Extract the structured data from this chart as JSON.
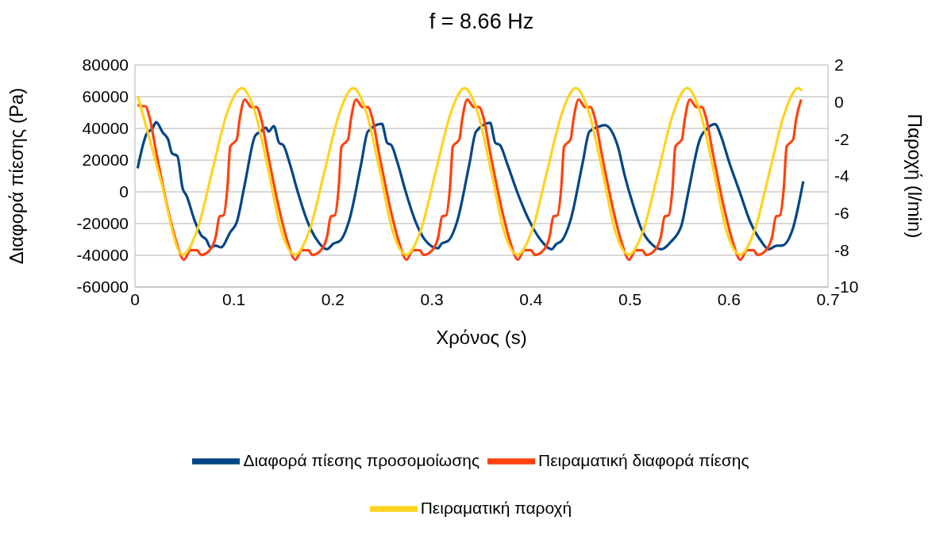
{
  "chart_data": {
    "type": "line",
    "title": "f = 8.66 Hz",
    "xlabel": "Χρόνος (s)",
    "ylabel": "Διαφορά πίεσης (Pa)",
    "y2label": "Παροχή (l/min)",
    "xlim": [
      0,
      0.7
    ],
    "xticks": [
      0,
      0.1,
      0.2,
      0.3,
      0.4,
      0.5,
      0.6,
      0.7
    ],
    "ylim": [
      -60000,
      80000
    ],
    "yticks": [
      -60000,
      -40000,
      -20000,
      0,
      20000,
      40000,
      60000,
      80000
    ],
    "y2lim": [
      -10,
      2
    ],
    "y2ticks": [
      -10,
      -8,
      -6,
      -4,
      -2,
      0,
      2
    ],
    "grid": "y",
    "legend": "bottom",
    "series": [
      {
        "name": "Διαφορά πίεσης προσομοίωσης",
        "color": "#004586",
        "x": [
          0.0027,
          0.012,
          0.0174,
          0.0214,
          0.0281,
          0.0334,
          0.0374,
          0.0428,
          0.0481,
          0.0521,
          0.0601,
          0.0668,
          0.0722,
          0.0762,
          0.0815,
          0.0869,
          0.0962,
          0.1029,
          0.1109,
          0.1216,
          0.1269,
          0.1323,
          0.135,
          0.1403,
          0.1457,
          0.1497,
          0.1564,
          0.1644,
          0.1737,
          0.1831,
          0.1938,
          0.2004,
          0.2071,
          0.2165,
          0.2285,
          0.2352,
          0.2494,
          0.2548,
          0.2588,
          0.2655,
          0.2735,
          0.2828,
          0.2922,
          0.306,
          0.3097,
          0.3164,
          0.3258,
          0.3378,
          0.3445,
          0.3587,
          0.3641,
          0.3685,
          0.376,
          0.386,
          0.398,
          0.409,
          0.421,
          0.4254,
          0.431,
          0.44,
          0.452,
          0.459,
          0.4677,
          0.4744,
          0.4878,
          0.4945,
          0.5038,
          0.5118,
          0.5225,
          0.5319,
          0.5413,
          0.5519,
          0.5586,
          0.5706,
          0.5786,
          0.586,
          0.592,
          0.6,
          0.6108,
          0.6215,
          0.6322,
          0.6402,
          0.6482,
          0.6535,
          0.6642,
          0.675
        ],
        "values": [
          14800,
          36800,
          39700,
          43900,
          37400,
          33200,
          24300,
          22600,
          2300,
          -2400,
          -17800,
          -27300,
          -30300,
          -35000,
          -33900,
          -35000,
          -25500,
          -19000,
          4700,
          35600,
          38000,
          40400,
          38000,
          41500,
          30800,
          29600,
          17700,
          0,
          -17800,
          -29700,
          -36200,
          -32700,
          -30900,
          -17800,
          17700,
          38000,
          42900,
          30800,
          29600,
          17700,
          0,
          -17800,
          -29700,
          -35600,
          -32700,
          -30900,
          -17800,
          17700,
          38000,
          43600,
          30800,
          29600,
          17700,
          0,
          -17800,
          -29700,
          -36200,
          -33000,
          -30900,
          -17800,
          17700,
          38000,
          41000,
          42100,
          28500,
          10700,
          -9500,
          -23800,
          -33300,
          -36200,
          -31500,
          -21400,
          -1200,
          33200,
          40400,
          42700,
          35000,
          19000,
          0,
          -19000,
          -30900,
          -36200,
          -33900,
          -33900,
          -23800,
          6600
        ]
      },
      {
        "name": "Πειραματική διαφορά πίεσης",
        "color": "#ff420e",
        "x": [
          0.003,
          0.0055,
          0.0105,
          0.0145,
          0.0215,
          0.0345,
          0.0415,
          0.0495,
          0.0561,
          0.0628,
          0.0668,
          0.0762,
          0.0815,
          0.0855,
          0.0895,
          0.0935,
          0.0962,
          0.1029,
          0.1056,
          0.1109,
          0.1176,
          0.1229,
          0.1269,
          0.1339,
          0.1469,
          0.1539,
          0.1619,
          0.1685,
          0.1752,
          0.1792,
          0.1886,
          0.1939,
          0.1979,
          0.2019,
          0.2059,
          0.2086,
          0.2153,
          0.218,
          0.2233,
          0.23,
          0.2353,
          0.2393,
          0.2463,
          0.2593,
          0.2663,
          0.2743,
          0.2809,
          0.2876,
          0.2916,
          0.301,
          0.3063,
          0.3103,
          0.3143,
          0.3183,
          0.321,
          0.3277,
          0.3304,
          0.3357,
          0.3424,
          0.3477,
          0.3517,
          0.3587,
          0.3717,
          0.3787,
          0.3867,
          0.3933,
          0.4,
          0.404,
          0.4134,
          0.4187,
          0.4227,
          0.4267,
          0.4307,
          0.4334,
          0.4401,
          0.4428,
          0.4481,
          0.4548,
          0.4601,
          0.4641,
          0.4711,
          0.4841,
          0.4911,
          0.4991,
          0.5057,
          0.5124,
          0.5164,
          0.5258,
          0.5311,
          0.5351,
          0.5391,
          0.5431,
          0.5458,
          0.5525,
          0.5552,
          0.5605,
          0.5672,
          0.5725,
          0.5765,
          0.5835,
          0.5965,
          0.6035,
          0.6115,
          0.6181,
          0.6248,
          0.6288,
          0.6382,
          0.6435,
          0.6475,
          0.6515,
          0.6555,
          0.6582,
          0.6649,
          0.6676,
          0.6729
        ],
        "values": [
          55200,
          54000,
          54000,
          47500,
          25000,
          -14200,
          -30900,
          -42800,
          -36800,
          -36800,
          -39800,
          -36200,
          -28500,
          -15500,
          -14800,
          3700,
          28500,
          33200,
          45100,
          58200,
          53400,
          53400,
          47500,
          25000,
          -14200,
          -30900,
          -42800,
          -36800,
          -36800,
          -39800,
          -36200,
          -28500,
          -15500,
          -14800,
          3700,
          28500,
          33200,
          45100,
          58200,
          53400,
          53400,
          47500,
          25000,
          -14200,
          -30900,
          -42800,
          -36800,
          -36800,
          -39800,
          -36200,
          -28500,
          -15500,
          -14800,
          3700,
          28500,
          33200,
          45100,
          58200,
          53400,
          53400,
          47500,
          25000,
          -14200,
          -30900,
          -42800,
          -36800,
          -36800,
          -39800,
          -36200,
          -28500,
          -15500,
          -14800,
          3700,
          28500,
          33200,
          45100,
          58200,
          53400,
          53400,
          47500,
          25000,
          -14200,
          -30900,
          -42800,
          -36800,
          -36800,
          -39800,
          -36200,
          -28500,
          -15500,
          -14800,
          3700,
          28500,
          33200,
          45100,
          58200,
          53400,
          53400,
          47500,
          25000,
          -14200,
          -30900,
          -42800,
          -36800,
          -36800,
          -39800,
          -36200,
          -28500,
          -15500,
          -14800,
          3700,
          28500,
          33200,
          45100,
          58200
        ]
      },
      {
        "name": "Πειραματική παροχή",
        "color": "#ffd320",
        "axis": "y2",
        "x": [
          0.003,
          0.025,
          0.048,
          0.063,
          0.078,
          0.093,
          0.108,
          0.121,
          0.135,
          0.148,
          0.1615,
          0.1765,
          0.1915,
          0.2065,
          0.2204,
          0.2334,
          0.2474,
          0.2604,
          0.2739,
          0.2889,
          0.3039,
          0.3189,
          0.3328,
          0.3458,
          0.3598,
          0.3728,
          0.3863,
          0.4013,
          0.4163,
          0.4313,
          0.4452,
          0.4582,
          0.4722,
          0.4852,
          0.4987,
          0.5137,
          0.5287,
          0.5437,
          0.5576,
          0.5706,
          0.5846,
          0.5976,
          0.6111,
          0.6261,
          0.6411,
          0.6561,
          0.67,
          0.674
        ],
        "values": [
          0.3,
          -4,
          -8.25,
          -6.9,
          -3.75,
          -0.6,
          0.75,
          -0.5,
          -3.75,
          -7,
          -8.25,
          -6.9,
          -3.75,
          -0.6,
          0.75,
          -0.5,
          -3.75,
          -7,
          -8.25,
          -6.9,
          -3.75,
          -0.6,
          0.75,
          -0.5,
          -3.75,
          -7,
          -8.25,
          -6.9,
          -3.75,
          -0.6,
          0.75,
          -0.5,
          -3.75,
          -7,
          -8.25,
          -6.9,
          -3.75,
          -0.6,
          0.75,
          -0.5,
          -3.75,
          -7,
          -8.25,
          -6.9,
          -3.75,
          -0.6,
          0.75,
          0.6
        ]
      }
    ]
  }
}
